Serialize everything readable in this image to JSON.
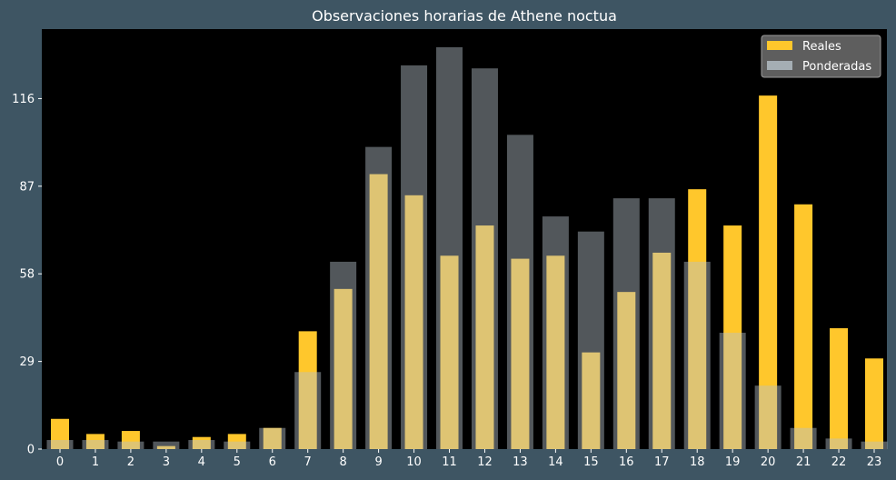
{
  "chart_data": {
    "type": "bar",
    "title": "Observaciones horarias de Athene noctua",
    "xlabel": "",
    "ylabel": "",
    "categories": [
      "0",
      "1",
      "2",
      "3",
      "4",
      "5",
      "6",
      "7",
      "8",
      "9",
      "10",
      "11",
      "12",
      "13",
      "14",
      "15",
      "16",
      "17",
      "18",
      "19",
      "20",
      "21",
      "22",
      "23"
    ],
    "series": [
      {
        "name": "Reales",
        "color": "#ffc72c",
        "values": [
          10,
          5,
          6,
          1,
          4,
          5,
          7,
          39,
          53,
          91,
          84,
          64,
          74,
          63,
          64,
          32,
          52,
          65,
          86,
          74,
          117,
          81,
          40,
          30
        ]
      },
      {
        "name": "Ponderadas",
        "color": "#b6c2c9",
        "opacity": 0.45,
        "values": [
          3,
          3,
          2.5,
          2.5,
          3,
          2.5,
          7,
          25.5,
          62,
          100,
          127,
          133,
          126,
          104,
          77,
          72,
          83,
          83,
          62,
          38.5,
          21,
          7,
          3.5,
          2.5
        ]
      }
    ],
    "yticks": [
      0,
      29,
      58,
      87,
      116
    ],
    "ylim": [
      0,
      139
    ],
    "legend_position": "top-right",
    "grid": false,
    "background": "#000000",
    "figure_background": "#3e5563"
  }
}
